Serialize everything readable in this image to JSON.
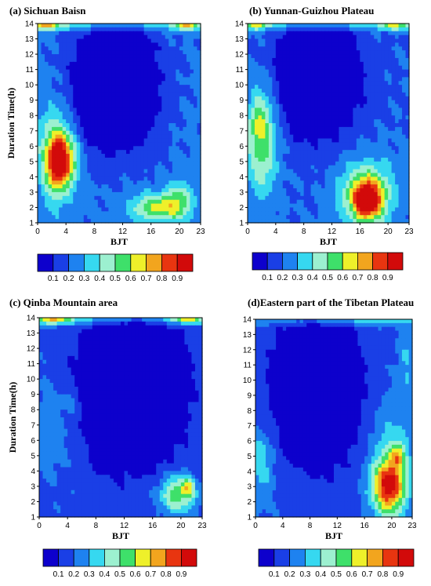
{
  "figure": {
    "colorbar_labels": [
      "0.1",
      "0.2",
      "0.3",
      "0.4",
      "0.5",
      "0.6",
      "0.7",
      "0.8",
      "0.9"
    ],
    "colorbar_colors": [
      "#0d00cc",
      "#1a3fe6",
      "#1e82f0",
      "#36d8f0",
      "#9cf0d0",
      "#3ee06a",
      "#eef02a",
      "#f2a51e",
      "#e83510",
      "#d20a0a"
    ],
    "colorbar_levels": [
      0.1,
      0.2,
      0.3,
      0.4,
      0.5,
      0.6,
      0.7,
      0.8,
      0.9
    ]
  },
  "chart_data": [
    {
      "type": "heatmap",
      "title": "(a) Sichuan Baisn",
      "xlabel": "BJT",
      "ylabel": "Duration Time(h)",
      "x_ticks": [
        "0",
        "4",
        "8",
        "12",
        "16",
        "20",
        "23"
      ],
      "y_ticks": [
        "1",
        "2",
        "3",
        "4",
        "5",
        "6",
        "7",
        "8",
        "9",
        "10",
        "11",
        "12",
        "13",
        "14"
      ],
      "xlim": [
        0,
        23
      ],
      "ylim": [
        1,
        14
      ],
      "base": 0.22,
      "features": [
        {
          "x": 3,
          "y": 5,
          "sx": 1.6,
          "sy": 1.6,
          "a": 0.75
        },
        {
          "x": 2.5,
          "y": 5.5,
          "sx": 2.5,
          "sy": 3.2,
          "a": 0.3
        },
        {
          "x": 5,
          "y": 5,
          "sx": 1.2,
          "sy": 1.4,
          "a": 0.15
        },
        {
          "x": 17,
          "y": 2,
          "sx": 3.5,
          "sy": 0.9,
          "a": 0.42
        },
        {
          "x": 20,
          "y": 2.5,
          "sx": 1.8,
          "sy": 1.2,
          "a": 0.25
        },
        {
          "x": 11,
          "y": 10,
          "sx": 5.5,
          "sy": 3.8,
          "a": -0.5
        },
        {
          "x": 9,
          "y": 13.9,
          "sx": 14,
          "sy": 0.35,
          "a": 0.2
        },
        {
          "x": 1,
          "y": 14,
          "sx": 2,
          "sy": 0.4,
          "a": 0.45
        },
        {
          "x": 21,
          "y": 14,
          "sx": 2,
          "sy": 0.4,
          "a": 0.45
        }
      ]
    },
    {
      "type": "heatmap",
      "title": "(b) Yunnan-Guizhou Plateau",
      "xlabel": "BJT",
      "ylabel": "",
      "x_ticks": [
        "0",
        "4",
        "8",
        "12",
        "16",
        "20",
        "23"
      ],
      "y_ticks": [
        "1",
        "2",
        "3",
        "4",
        "5",
        "6",
        "7",
        "8",
        "9",
        "10",
        "11",
        "12",
        "13",
        "14"
      ],
      "xlim": [
        0,
        23
      ],
      "ylim": [
        1,
        14
      ],
      "base": 0.2,
      "features": [
        {
          "x": 17,
          "y": 2.5,
          "sx": 2.2,
          "sy": 1.3,
          "a": 0.72
        },
        {
          "x": 17,
          "y": 3,
          "sx": 4,
          "sy": 2.2,
          "a": 0.3
        },
        {
          "x": 2,
          "y": 6.5,
          "sx": 2.2,
          "sy": 3.5,
          "a": 0.38
        },
        {
          "x": 1.5,
          "y": 7.5,
          "sx": 1,
          "sy": 1.2,
          "a": 0.15
        },
        {
          "x": 10,
          "y": 10.5,
          "sx": 5.5,
          "sy": 3.5,
          "a": -0.45
        },
        {
          "x": 11,
          "y": 13.9,
          "sx": 14,
          "sy": 0.35,
          "a": 0.22
        },
        {
          "x": 1,
          "y": 14,
          "sx": 2,
          "sy": 0.4,
          "a": 0.35
        },
        {
          "x": 21,
          "y": 14,
          "sx": 2,
          "sy": 0.4,
          "a": 0.35
        }
      ]
    },
    {
      "type": "heatmap",
      "title": "(c) Qinba Mountain area",
      "xlabel": "BJT",
      "ylabel": "Duration Time(h)",
      "x_ticks": [
        "0",
        "4",
        "8",
        "12",
        "16",
        "20",
        "23"
      ],
      "y_ticks": [
        "1",
        "2",
        "3",
        "4",
        "5",
        "6",
        "7",
        "8",
        "9",
        "10",
        "11",
        "12",
        "13",
        "14"
      ],
      "xlim": [
        0,
        23
      ],
      "ylim": [
        1,
        14
      ],
      "base": 0.17,
      "features": [
        {
          "x": 19.5,
          "y": 2.5,
          "sx": 2.5,
          "sy": 1.2,
          "a": 0.42
        },
        {
          "x": 21,
          "y": 3,
          "sx": 0.8,
          "sy": 0.6,
          "a": 0.3
        },
        {
          "x": 2,
          "y": 7,
          "sx": 3,
          "sy": 3.5,
          "a": 0.1
        },
        {
          "x": 5,
          "y": 8.5,
          "sx": 1.5,
          "sy": 1,
          "a": 0.08
        },
        {
          "x": 13,
          "y": 9.5,
          "sx": 6.5,
          "sy": 4.5,
          "a": -0.45
        },
        {
          "x": 10,
          "y": 13.9,
          "sx": 14,
          "sy": 0.35,
          "a": 0.22
        },
        {
          "x": 2,
          "y": 14,
          "sx": 2.5,
          "sy": 0.4,
          "a": 0.45
        },
        {
          "x": 21,
          "y": 14,
          "sx": 2.5,
          "sy": 0.4,
          "a": 0.45
        }
      ]
    },
    {
      "type": "heatmap",
      "title": "(d)Eastern part of the Tibetan Plateau",
      "xlabel": "BJT",
      "ylabel": "",
      "x_ticks": [
        "0",
        "4",
        "8",
        "12",
        "16",
        "20",
        "23"
      ],
      "y_ticks": [
        "1",
        "2",
        "3",
        "4",
        "5",
        "6",
        "7",
        "8",
        "9",
        "10",
        "11",
        "12",
        "13",
        "14"
      ],
      "xlim": [
        0,
        23
      ],
      "ylim": [
        1,
        14
      ],
      "base": 0.18,
      "features": [
        {
          "x": 19.5,
          "y": 3,
          "sx": 2.3,
          "sy": 1.7,
          "a": 0.65
        },
        {
          "x": 21,
          "y": 5,
          "sx": 1,
          "sy": 0.8,
          "a": 0.3
        },
        {
          "x": 20,
          "y": 4.5,
          "sx": 2.8,
          "sy": 3.5,
          "a": 0.22
        },
        {
          "x": 1,
          "y": 4.5,
          "sx": 1.8,
          "sy": 2.5,
          "a": 0.18
        },
        {
          "x": 9,
          "y": 9.5,
          "sx": 5.5,
          "sy": 4.5,
          "a": -0.45
        },
        {
          "x": 12,
          "y": 13.9,
          "sx": 14,
          "sy": 0.35,
          "a": 0.2
        },
        {
          "x": 22,
          "y": 11,
          "sx": 1.2,
          "sy": 2.5,
          "a": 0.12
        }
      ]
    }
  ]
}
